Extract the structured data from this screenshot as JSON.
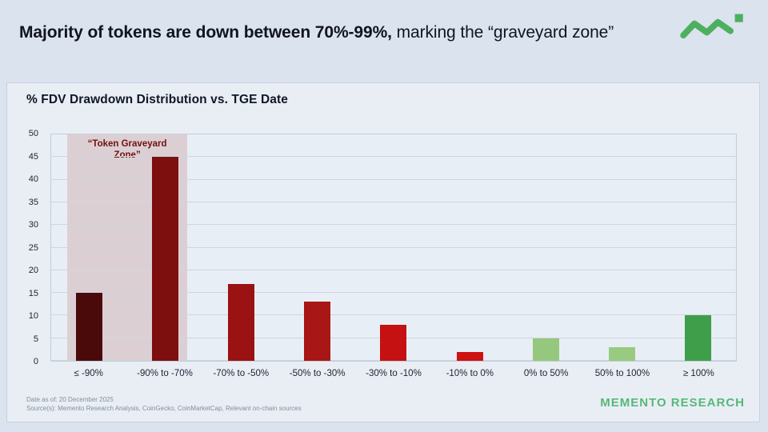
{
  "header": {
    "title_bold": "Majority of tokens are down between 70%-99%,",
    "title_rest": "marking the “graveyard zone”"
  },
  "logo": {
    "icon": "zigzag-sparkline-with-square",
    "color": "#4cb05f"
  },
  "panel": {
    "chart_title": "% FDV Drawdown Distribution vs. TGE Date",
    "footnote_line1": "Date as of: 20 December 2025",
    "footnote_line2": "Source(s): Memento Research Analysis, CoinGecko, CoinMarketCap, Relevant on-chain sources",
    "brand": "MEMENTO RESEARCH",
    "brand_color": "#56b878"
  },
  "chart_data": {
    "type": "bar",
    "title": "% FDV Drawdown Distribution vs. TGE Date",
    "categories": [
      "≤ -90%",
      "-90% to -70%",
      "-70% to -50%",
      "-50% to -30%",
      "-30% to -10%",
      "-10% to 0%",
      "0% to 50%",
      "50% to 100%",
      "≥ 100%"
    ],
    "values": [
      15,
      45,
      17,
      13,
      8,
      2,
      5,
      3,
      10
    ],
    "bar_colors": [
      "#4a0a0a",
      "#7d0f0f",
      "#9a1212",
      "#a81616",
      "#c51111",
      "#ce1111",
      "#95c87c",
      "#98ca80",
      "#3f9e49"
    ],
    "xlabel": "",
    "ylabel": "",
    "ylim": [
      0,
      50
    ],
    "ytick_step": 5,
    "grid": "horizontal",
    "legend": "none",
    "annotation": {
      "label": "“Token Graveyard Zone”",
      "start_index": 0,
      "end_index": 1,
      "fill": "#dccfd3",
      "text_color": "#701010"
    }
  }
}
